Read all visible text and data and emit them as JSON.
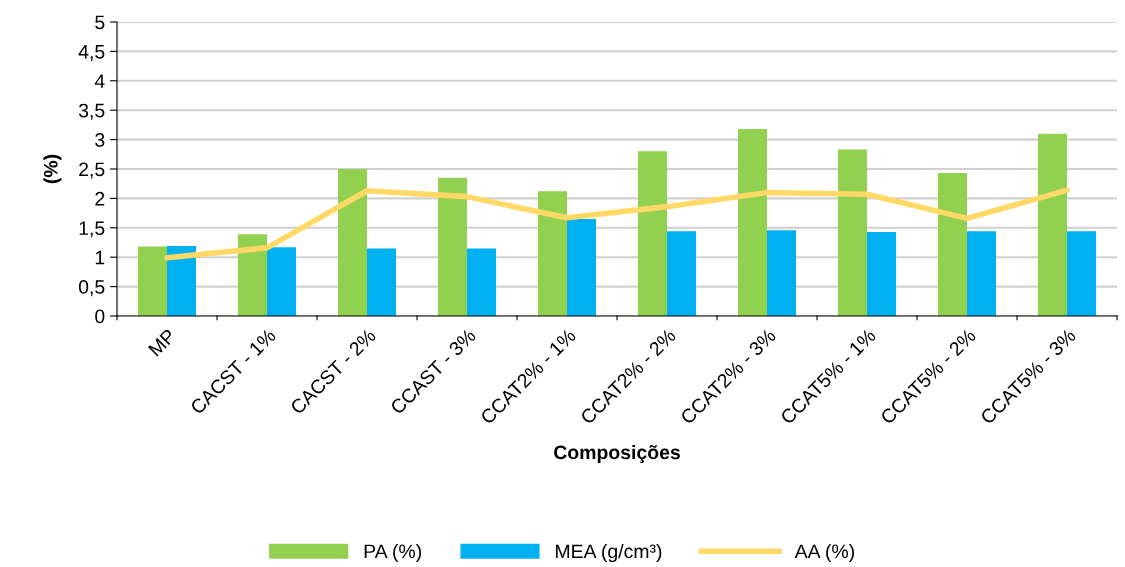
{
  "chart_data": {
    "type": "bar",
    "xlabel": "Composições",
    "ylabel": "(%)",
    "categories": [
      "MP",
      "CACST - 1%",
      "CACST - 2%",
      "CCAST - 3%",
      "CCAT2% - 1%",
      "CCAT2% - 2%",
      "CCAT2% - 3%",
      "CCAT5% - 1%",
      "CCAT5% - 2%",
      "CCAT5% - 3%"
    ],
    "series": [
      {
        "name": "PA (%)",
        "color": "#92d050",
        "values": [
          1.18,
          1.39,
          2.5,
          2.35,
          2.12,
          2.8,
          3.18,
          2.83,
          2.43,
          3.1
        ]
      },
      {
        "name": "MEA (g/cm³)",
        "color": "#00b0f0",
        "values": [
          1.19,
          1.17,
          1.15,
          1.15,
          1.65,
          1.44,
          1.46,
          1.43,
          1.44,
          1.44
        ]
      },
      {
        "name": "AA (%)",
        "type": "line",
        "color": "#ffd966",
        "values": [
          0.99,
          1.16,
          2.13,
          2.03,
          1.67,
          1.86,
          2.1,
          2.07,
          1.66,
          2.14
        ]
      }
    ],
    "ylim": [
      0,
      5
    ],
    "yticks": [
      0,
      {
        "value": 0.5,
        "label": "0,5"
      },
      1,
      {
        "value": 1.5,
        "label": "1,5"
      },
      2,
      {
        "value": 2.5,
        "label": "2,5"
      },
      3,
      {
        "value": 3.5,
        "label": "3,5"
      },
      4,
      {
        "value": 4.5,
        "label": "4,5"
      },
      5
    ],
    "grid": "y",
    "legend": "bottom"
  }
}
